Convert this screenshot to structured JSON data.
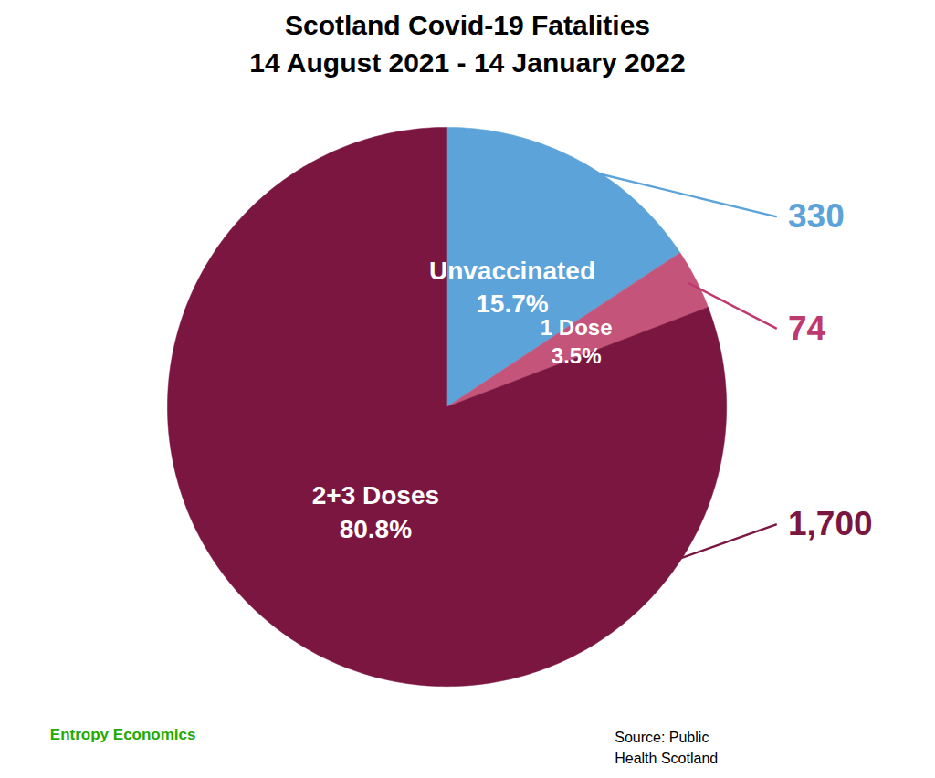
{
  "chart_data": {
    "type": "pie",
    "title": "Scotland Covid-19 Fatalities",
    "subtitle": "14 August 2021 - 14 January 2022",
    "categories": [
      "Unvaccinated",
      "1 Dose",
      "2+3 Doses"
    ],
    "values": [
      15.7,
      3.5,
      80.8
    ],
    "value_labels": [
      "15.7%",
      "3.5%",
      "80.8%"
    ],
    "colors": [
      "#5BA3D9",
      "#C4547A",
      "#7B1641"
    ],
    "data_labels": true,
    "counts": [
      330,
      74,
      {
        "value": 1700,
        "label": "1,700"
      }
    ],
    "count_colors": [
      "#5BA3D9",
      "#BE3A6E",
      "#7B1641"
    ],
    "annotations": [
      {
        "text": "Source: Public\nHealth Scotland"
      },
      {
        "text": "Entropy Economics",
        "color": "#22AA00"
      }
    ]
  }
}
